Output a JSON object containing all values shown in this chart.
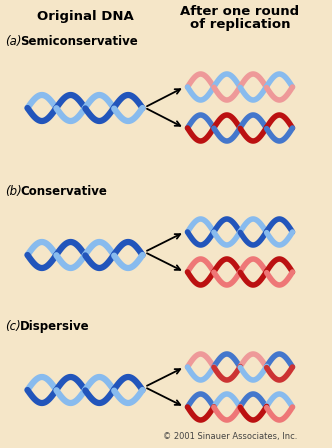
{
  "bg_color": "#f5e6c8",
  "title_left": "Original DNA",
  "title_right_1": "After one round",
  "title_right_2": "of replication",
  "copyright": "© 2001 Sinauer Associates, Inc.",
  "sections": [
    {
      "label": "(a)",
      "bold": "Semiconservative"
    },
    {
      "label": "(b)",
      "bold": "Conservative"
    },
    {
      "label": "(c)",
      "bold": "Dispersive"
    }
  ],
  "blue_dark": "#2255bb",
  "blue_light": "#88bbee",
  "blue_mid": "#4477cc",
  "red_dark": "#bb1111",
  "red_light": "#ee7777",
  "red_mid": "#cc3333",
  "pink": "#ee9999"
}
